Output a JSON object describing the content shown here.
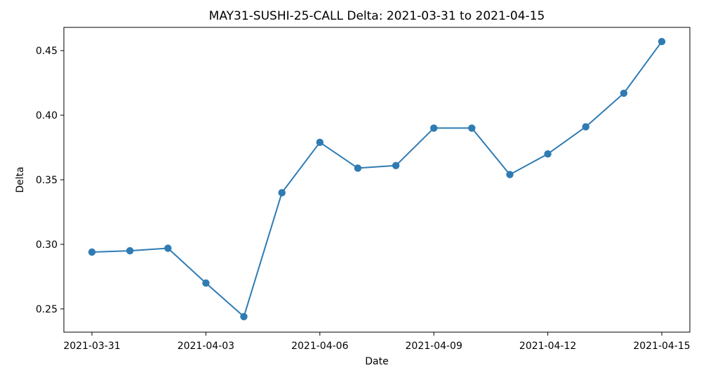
{
  "chart_data": {
    "type": "line",
    "title": "MAY31-SUSHI-25-CALL Delta: 2021-03-31 to 2021-04-15",
    "xlabel": "Date",
    "ylabel": "Delta",
    "x_tick_labels": [
      "2021-03-31",
      "2021-04-03",
      "2021-04-06",
      "2021-04-09",
      "2021-04-12",
      "2021-04-15"
    ],
    "y_tick_labels": [
      "0.25",
      "0.30",
      "0.35",
      "0.40",
      "0.45"
    ],
    "x_range": [
      "2021-03-30",
      "2021-04-15"
    ],
    "ylim": [
      0.232,
      0.468
    ],
    "grid": false,
    "series": [
      {
        "color": "#2f7bb4",
        "marker": "circle",
        "x": [
          "2021-03-31",
          "2021-04-01",
          "2021-04-02",
          "2021-04-03",
          "2021-04-04",
          "2021-04-05",
          "2021-04-06",
          "2021-04-07",
          "2021-04-08",
          "2021-04-09",
          "2021-04-10",
          "2021-04-11",
          "2021-04-12",
          "2021-04-13",
          "2021-04-14",
          "2021-04-15"
        ],
        "values": [
          0.294,
          0.295,
          0.297,
          0.27,
          0.244,
          0.34,
          0.379,
          0.359,
          0.361,
          0.39,
          0.39,
          0.354,
          0.37,
          0.391,
          0.417,
          0.457
        ]
      }
    ]
  }
}
